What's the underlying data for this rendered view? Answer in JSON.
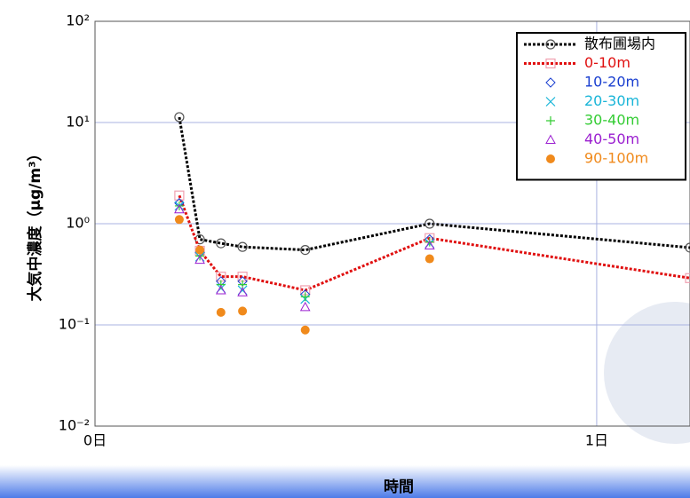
{
  "chart_data": {
    "type": "line",
    "xlabel": "時間",
    "ylabel": "大気中濃度（μg/m³）",
    "log_y": true,
    "grid": true,
    "legend": "upper right",
    "xlim": [
      0,
      1.186
    ],
    "ylim": [
      0.01,
      100
    ],
    "xticks": [
      {
        "value": 0,
        "label": "0日"
      },
      {
        "value": 1,
        "label": "1日"
      }
    ],
    "yticks": [
      {
        "value": 0.01,
        "label": "10⁻²"
      },
      {
        "value": 0.1,
        "label": "10⁻¹"
      },
      {
        "value": 1,
        "label": "10⁰"
      },
      {
        "value": 10,
        "label": "10¹"
      },
      {
        "value": 100,
        "label": "10²"
      }
    ],
    "x": [
      0.168,
      0.209,
      0.251,
      0.294,
      0.419,
      0.667,
      1.186
    ],
    "series": [
      {
        "name": "散布圃場内",
        "color": "#000000",
        "marker": "circle",
        "line": true,
        "values": [
          11.3,
          0.7,
          0.64,
          0.59,
          0.55,
          1.0,
          0.58
        ]
      },
      {
        "name": "0-10m",
        "color": "#e01010",
        "marker": "square",
        "line": true,
        "values": [
          1.9,
          0.54,
          0.3,
          0.3,
          0.22,
          0.72,
          0.29
        ]
      },
      {
        "name": "10-20m",
        "color": "#1a3fd0",
        "marker": "diamond",
        "line": false,
        "values": [
          1.6,
          0.52,
          0.27,
          0.27,
          0.2,
          0.7,
          null
        ]
      },
      {
        "name": "20-30m",
        "color": "#19b5d8",
        "marker": "cross",
        "line": false,
        "values": [
          1.5,
          0.47,
          0.23,
          0.22,
          0.18,
          0.64,
          null
        ]
      },
      {
        "name": "30-40m",
        "color": "#33cc33",
        "marker": "plus",
        "line": false,
        "values": [
          1.5,
          0.48,
          0.25,
          0.25,
          0.19,
          0.66,
          null
        ]
      },
      {
        "name": "40-50m",
        "color": "#9b1fd0",
        "marker": "triangle",
        "line": false,
        "values": [
          1.39,
          0.44,
          0.22,
          0.21,
          0.15,
          0.61,
          null
        ]
      },
      {
        "name": "90-100m",
        "color": "#f08a1c",
        "marker": "dot",
        "line": false,
        "values": [
          1.1,
          0.55,
          0.133,
          0.137,
          0.089,
          0.45,
          null
        ]
      }
    ]
  }
}
